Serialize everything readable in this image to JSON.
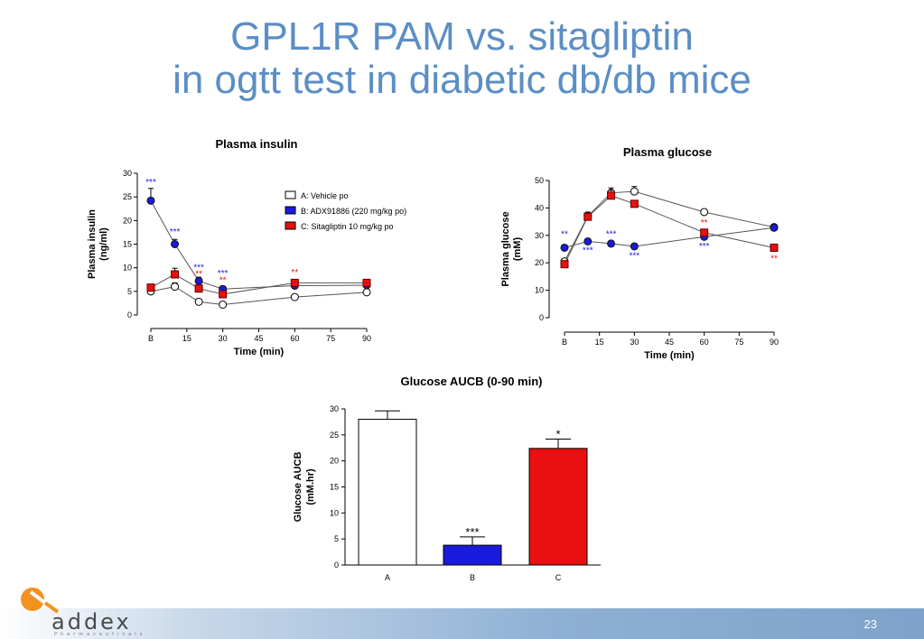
{
  "slide": {
    "title_line1": "GPL1R PAM vs. sitagliptin",
    "title_line2": "in ogtt test in diabetic db/db mice",
    "page_number": "23",
    "logo_text": "addex",
    "logo_subtext": "Pharmaceuticals"
  },
  "colors": {
    "vehicle": "#ffffff",
    "adx": "#1a1adc",
    "sitagliptin": "#e81010",
    "title": "#5b8ec4"
  },
  "chart_data": [
    {
      "type": "line",
      "title": "Plasma insulin",
      "xlabel": "Time (min)",
      "ylabel": "Plasma insulin (ng/ml)",
      "xticks": [
        "B",
        "15",
        "30",
        "45",
        "60",
        "75",
        "90"
      ],
      "ylim": [
        0,
        30
      ],
      "yticks": [
        "0",
        "5",
        "10",
        "15",
        "20",
        "25",
        "30"
      ],
      "legend": [
        "A: Vehicle po",
        "B: ADX91886 (220 mg/kg po)",
        "C: Sitagliptin 10 mg/kg po"
      ],
      "series": [
        {
          "name": "A: Vehicle po",
          "x": [
            0,
            10,
            20,
            30,
            60,
            90
          ],
          "y": [
            5,
            6,
            2.8,
            2.2,
            3.8,
            4.8
          ],
          "err": [
            0.4,
            0.8,
            0.4,
            0.3,
            0.4,
            0.4
          ]
        },
        {
          "name": "B: ADX91886 (220 mg/kg po)",
          "x": [
            0,
            10,
            20,
            30,
            60,
            90
          ],
          "y": [
            24.2,
            15,
            7.2,
            5.5,
            6.2,
            6.3
          ],
          "err": [
            2.6,
            1,
            0.8,
            0.6,
            0.5,
            0.5
          ]
        },
        {
          "name": "C: Sitagliptin 10 mg/kg po",
          "x": [
            0,
            10,
            20,
            30,
            60,
            90
          ],
          "y": [
            5.8,
            8.6,
            5.6,
            4.4,
            6.8,
            6.8
          ],
          "err": [
            0.7,
            1.3,
            0.6,
            0.5,
            0.7,
            0.6
          ]
        }
      ],
      "annotations": [
        {
          "text": "***",
          "series": "B",
          "x": 0,
          "y": 27.5
        },
        {
          "text": "***",
          "series": "B",
          "x": 10,
          "y": 17
        },
        {
          "text": "***",
          "series": "B",
          "x": 20,
          "y": 9.5
        },
        {
          "text": "**",
          "series": "C",
          "x": 20,
          "y": 8.1
        },
        {
          "text": "***",
          "series": "B",
          "x": 30,
          "y": 8.2
        },
        {
          "text": "**",
          "series": "C",
          "x": 30,
          "y": 6.8
        },
        {
          "text": "**",
          "series": "C",
          "x": 60,
          "y": 8.4
        }
      ]
    },
    {
      "type": "line",
      "title": "Plasma glucose",
      "xlabel": "Time (min)",
      "ylabel": "Plasma glucose (mM)",
      "xticks": [
        "B",
        "15",
        "30",
        "45",
        "60",
        "75",
        "90"
      ],
      "ylim": [
        0,
        50
      ],
      "yticks": [
        "0",
        "10",
        "20",
        "30",
        "40",
        "50"
      ],
      "series": [
        {
          "name": "A: Vehicle po",
          "x": [
            0,
            10,
            20,
            30,
            60,
            90
          ],
          "y": [
            20.5,
            37,
            45.5,
            46,
            38.5,
            33
          ],
          "err": [
            1,
            1.5,
            1.8,
            1.8,
            1,
            0.8
          ]
        },
        {
          "name": "B: ADX91886 (220 mg/kg po)",
          "x": [
            0,
            10,
            20,
            30,
            60,
            90
          ],
          "y": [
            25.5,
            27.8,
            27,
            26,
            29.5,
            32.8
          ],
          "err": [
            0.8,
            0.8,
            1,
            1,
            1,
            0.8
          ]
        },
        {
          "name": "C: Sitagliptin 10 mg/kg po",
          "x": [
            0,
            10,
            20,
            30,
            60,
            90
          ],
          "y": [
            19.5,
            36.8,
            44.5,
            41.5,
            31,
            25.5
          ],
          "err": [
            0.8,
            1.2,
            2,
            1.2,
            1,
            0.8
          ]
        }
      ],
      "annotations": [
        {
          "text": "**",
          "series": "B",
          "x": 0,
          "y": 29.5
        },
        {
          "text": "***",
          "series": "B",
          "x": 10,
          "y": 23.5
        },
        {
          "text": "***",
          "series": "B",
          "x": 20,
          "y": 29.5
        },
        {
          "text": "***",
          "series": "B",
          "x": 30,
          "y": 21.5
        },
        {
          "text": "**",
          "series": "C",
          "x": 60,
          "y": 33.5
        },
        {
          "text": "***",
          "series": "B",
          "x": 60,
          "y": 25
        },
        {
          "text": "**",
          "series": "C",
          "x": 90,
          "y": 20.5
        }
      ]
    },
    {
      "type": "bar",
      "title": "Glucose AUCB (0-90 min)",
      "xlabel": "",
      "ylabel": "Glucose AUCB (mM.hr)",
      "categories": [
        "A",
        "B",
        "C"
      ],
      "values": [
        28,
        3.8,
        22.4
      ],
      "err": [
        1.6,
        1.6,
        1.8
      ],
      "ylim": [
        0,
        30
      ],
      "yticks": [
        "0",
        "5",
        "10",
        "15",
        "20",
        "25",
        "30"
      ],
      "labels": [
        "",
        "***",
        "*"
      ]
    }
  ]
}
